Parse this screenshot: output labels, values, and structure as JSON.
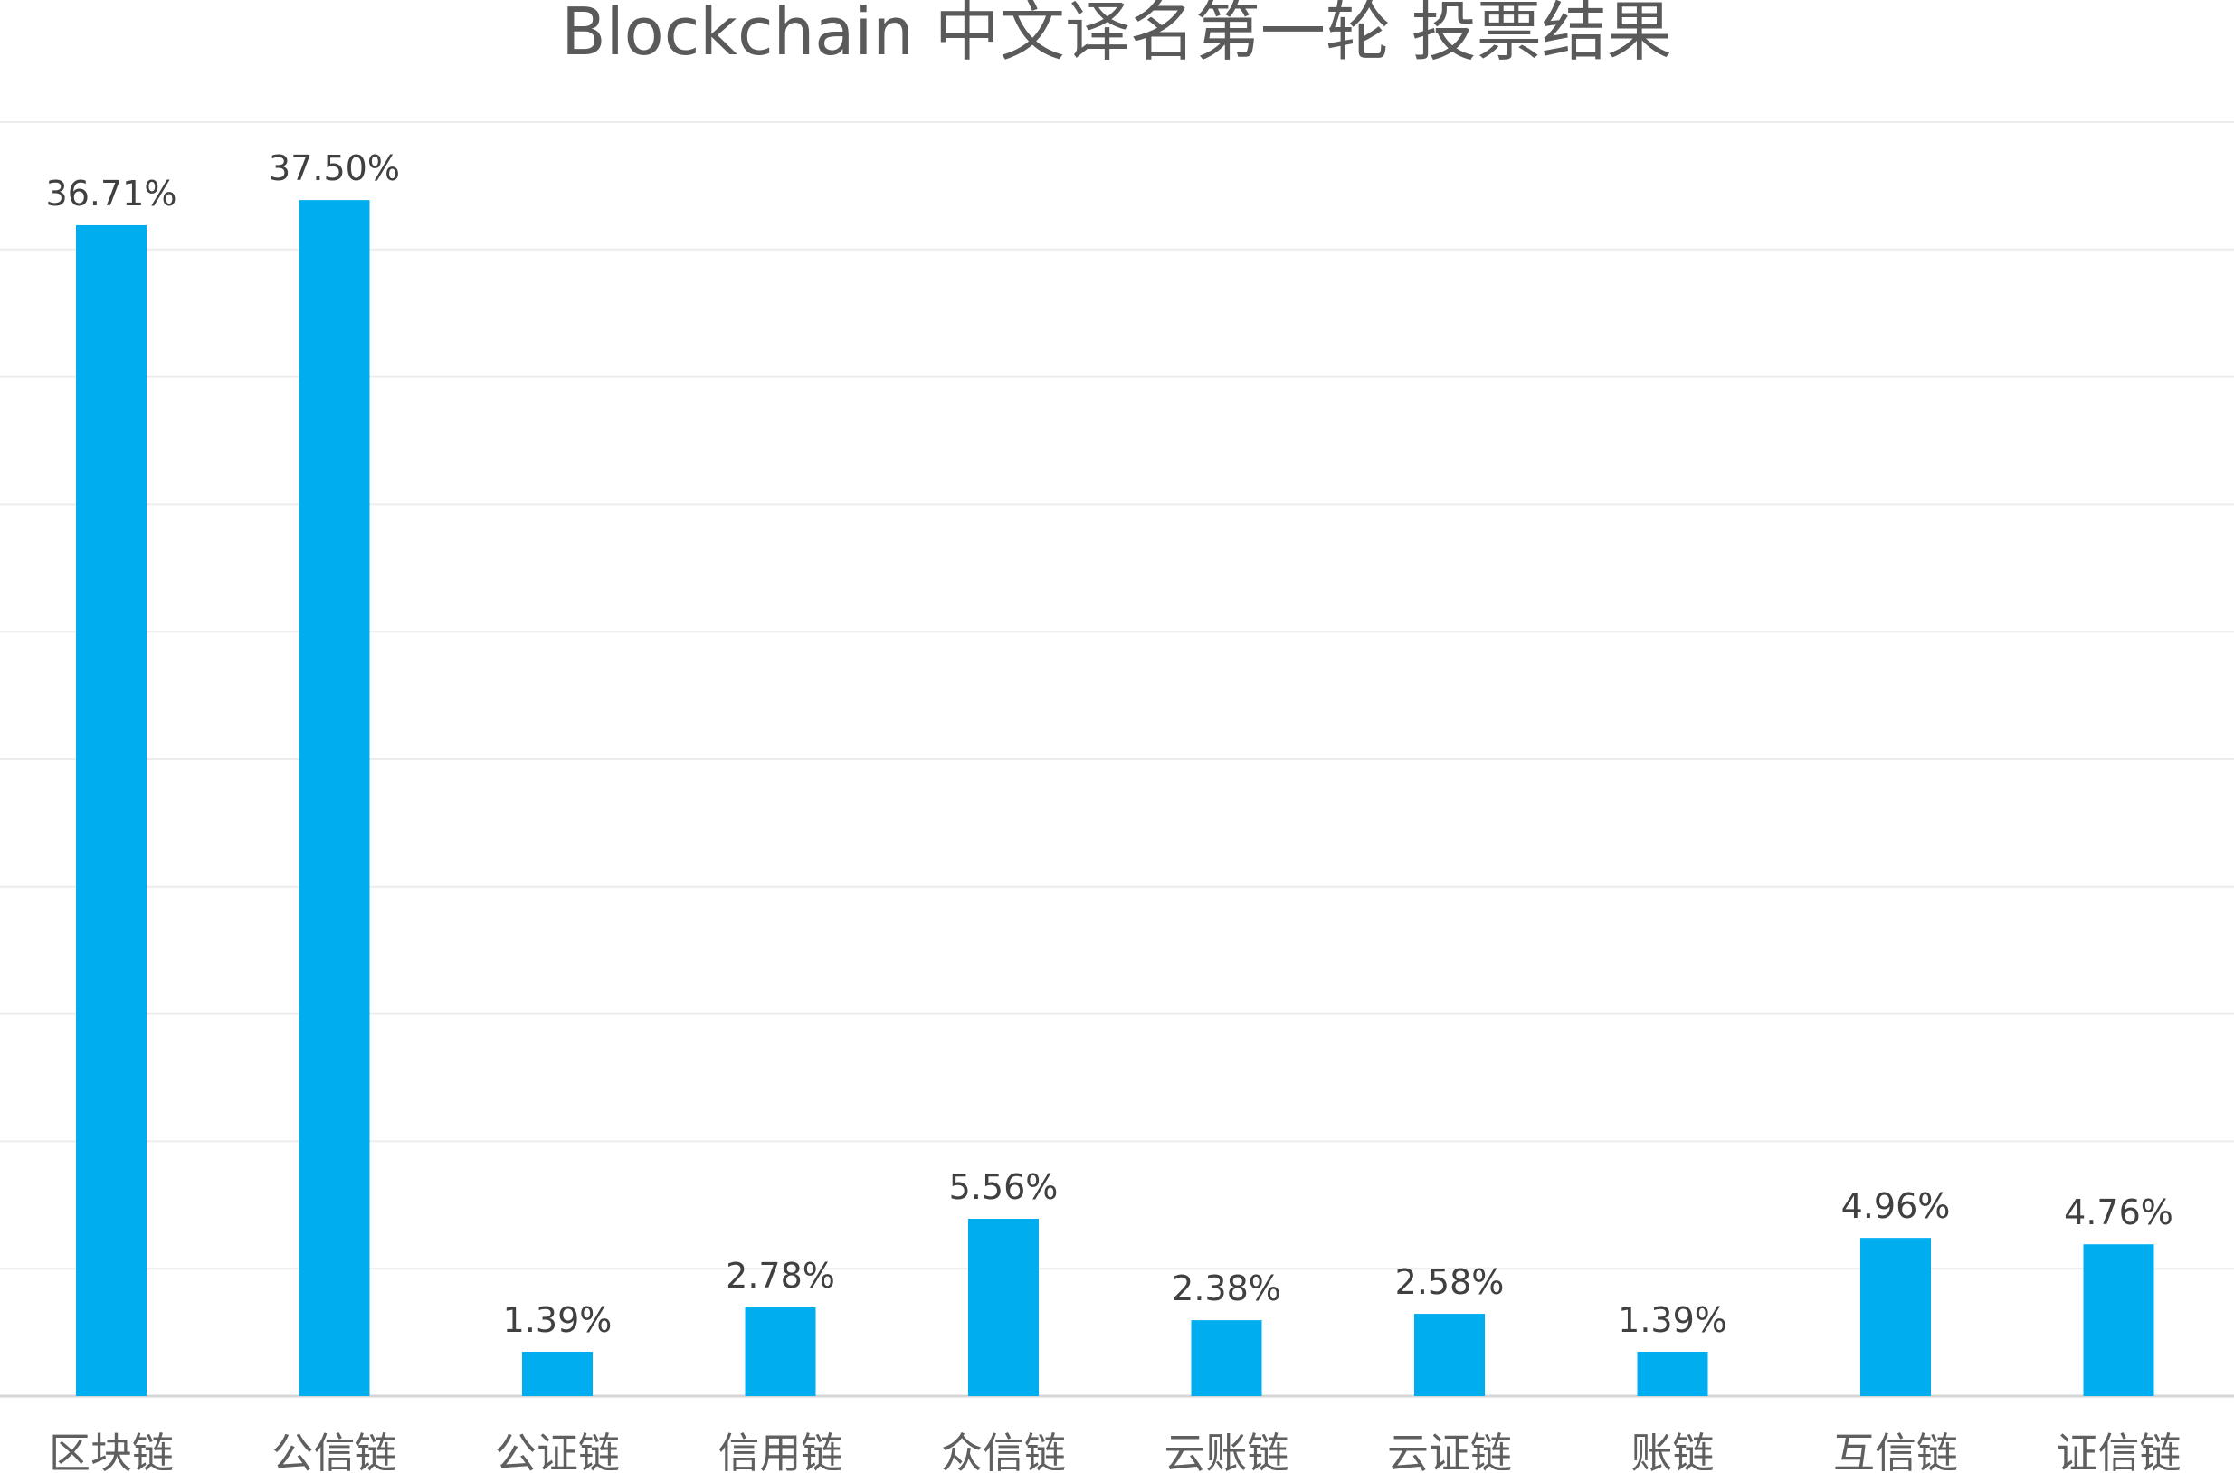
{
  "chart_data": {
    "type": "bar",
    "title": "Blockchain 中文译名第一轮 投票结果",
    "xlabel": "",
    "ylabel": "",
    "categories": [
      "区块链",
      "公信链",
      "公证链",
      "信用链",
      "众信链",
      "云账链",
      "云证链",
      "账链",
      "互信链",
      "证信链"
    ],
    "values": [
      36.71,
      37.5,
      1.39,
      2.78,
      5.56,
      2.38,
      2.58,
      1.39,
      4.96,
      4.76
    ],
    "data_labels": [
      "36.71%",
      "37.50%",
      "1.39%",
      "2.78%",
      "5.56%",
      "2.38%",
      "2.58%",
      "1.39%",
      "4.96%",
      "4.76%"
    ],
    "ylim": [
      0,
      40
    ],
    "grid": true,
    "legend": "none",
    "colors": {
      "bar": "#00AEEF"
    }
  }
}
